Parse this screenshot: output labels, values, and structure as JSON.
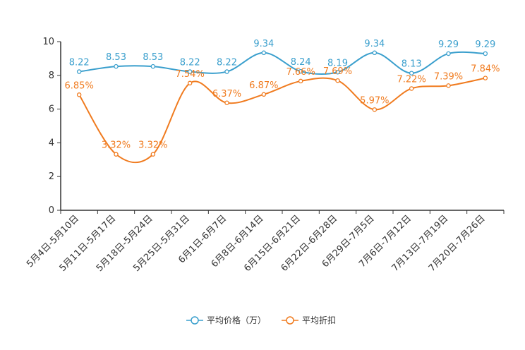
{
  "chart_data": {
    "type": "line",
    "categories": [
      "5月4日-5月10日",
      "5月11日-5月17日",
      "5月18日-5月24日",
      "5月25日-5月31日",
      "6月1日-6月7日",
      "6月8日-6月14日",
      "6月15日-6月21日",
      "6月22日-6月28日",
      "6月29日-7月5日",
      "7月6日-7月12日",
      "7月13日-7月19日",
      "7月20日-7月26日"
    ],
    "ylim": [
      0,
      10
    ],
    "yticks": [
      "0",
      "2",
      "4",
      "6",
      "8",
      "10"
    ],
    "series": [
      {
        "name": "平均价格（万）",
        "color": "#3a9fcd",
        "values": [
          8.22,
          8.53,
          8.53,
          8.22,
          8.22,
          9.34,
          8.24,
          8.19,
          9.34,
          8.13,
          9.29,
          9.29
        ],
        "labels": [
          "8.22",
          "8.53",
          "8.53",
          "8.22",
          "8.22",
          "9.34",
          "8.24",
          "8.19",
          "9.34",
          "8.13",
          "9.29",
          "9.29"
        ]
      },
      {
        "name": "平均折扣",
        "color": "#f07b1f",
        "values": [
          6.85,
          3.32,
          3.32,
          7.54,
          6.37,
          6.87,
          7.66,
          7.69,
          5.97,
          7.22,
          7.39,
          7.84
        ],
        "labels": [
          "6.85%",
          "3.32%",
          "3.32%",
          "7.54%",
          "6.37%",
          "6.87%",
          "7.66%",
          "7.69%",
          "5.97%",
          "7.22%",
          "7.39%",
          "7.84%"
        ]
      }
    ],
    "legend_position": "bottom-center",
    "grid": false
  }
}
